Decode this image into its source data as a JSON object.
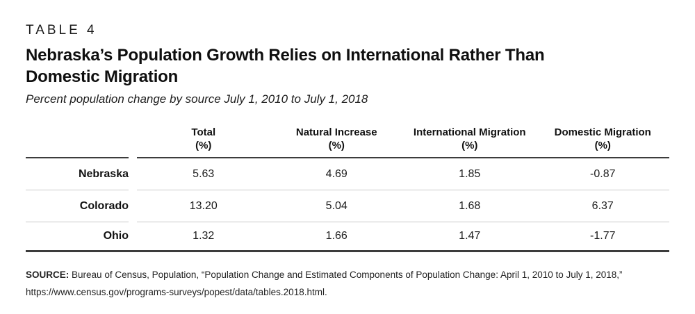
{
  "page": {
    "kicker": "TABLE 4",
    "title_line1": "Nebraska’s Population Growth Relies on International Rather Than",
    "title_line2": "Domestic Migration",
    "subtitle": "Percent population change by source July 1, 2010 to July 1, 2018"
  },
  "table": {
    "columns": [
      {
        "label": "Total",
        "unit": "(%)"
      },
      {
        "label": "Natural Increase",
        "unit": "(%)"
      },
      {
        "label": "International Migration",
        "unit": "(%)"
      },
      {
        "label": "Domestic Migration",
        "unit": "(%)"
      }
    ],
    "rows": [
      {
        "label": "Nebraska",
        "values": [
          "5.63",
          "4.69",
          "1.85",
          "-0.87"
        ]
      },
      {
        "label": "Colorado",
        "values": [
          "13.20",
          "5.04",
          "1.68",
          "6.37"
        ]
      },
      {
        "label": "Ohio",
        "values": [
          "1.32",
          "1.66",
          "1.47",
          "-1.77"
        ]
      }
    ]
  },
  "source": {
    "label": "SOURCE:",
    "line1_rest": "Bureau of Census, Population, “Population Change and Estimated Components of Population Change: April 1, 2010 to July 1, 2018,”",
    "line2": "https://www.census.gov/programs-surveys/popest/data/tables.2018.html."
  },
  "chart_data": {
    "type": "table",
    "title": "Nebraska’s Population Growth Relies on International Rather Than Domestic Migration",
    "subtitle": "Percent population change by source July 1, 2010 to July 1, 2018",
    "categories": [
      "Total (%)",
      "Natural Increase (%)",
      "International Migration (%)",
      "Domestic Migration (%)"
    ],
    "series": [
      {
        "name": "Nebraska",
        "values": [
          5.63,
          4.69,
          1.85,
          -0.87
        ]
      },
      {
        "name": "Colorado",
        "values": [
          13.2,
          5.04,
          1.68,
          6.37
        ]
      },
      {
        "name": "Ohio",
        "values": [
          1.32,
          1.66,
          1.47,
          -1.77
        ]
      }
    ]
  },
  "colors": {
    "dark_line": "#3c3c3c",
    "light_line": "#c9c9c9",
    "text": "#1d1d1d"
  }
}
